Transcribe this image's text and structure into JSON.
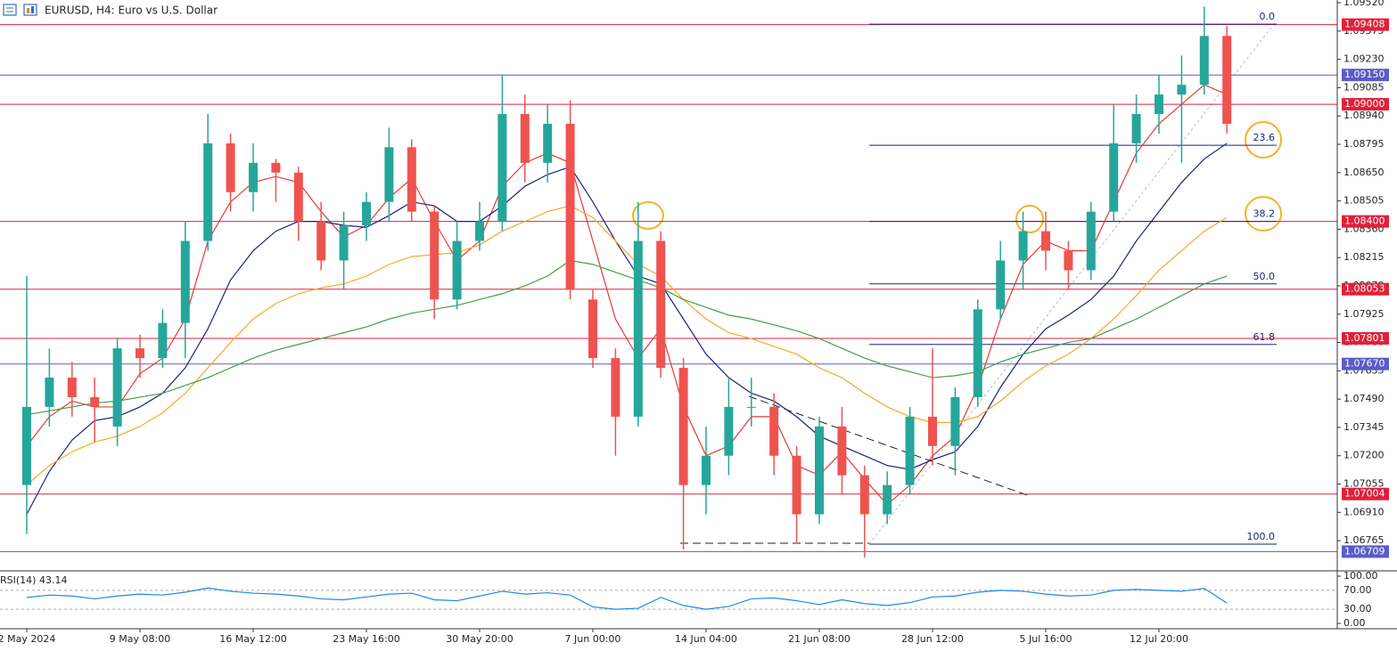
{
  "chart_data": [
    {
      "type": "candlestick",
      "title": "EURUSD, H4:  Euro vs U.S. Dollar",
      "categories": [
        "2 May 2024",
        null,
        null,
        null,
        null,
        "9 May 08:00",
        null,
        null,
        null,
        null,
        "16 May 12:00",
        null,
        null,
        null,
        null,
        "23 May 16:00",
        null,
        null,
        null,
        null,
        "30 May 20:00",
        null,
        null,
        null,
        null,
        "7 Jun 00:00",
        null,
        null,
        null,
        null,
        "14 Jun 04:00",
        null,
        null,
        null,
        null,
        "21 Jun 08:00",
        null,
        null,
        null,
        null,
        "28 Jun 12:00",
        null,
        null,
        null,
        null,
        "5 Jul 16:00",
        null,
        null,
        null,
        null,
        "12 Jul 20:00",
        null,
        null,
        null
      ],
      "open": [
        1.0705,
        1.0745,
        1.076,
        1.075,
        1.0735,
        1.0775,
        1.077,
        1.0788,
        1.083,
        1.088,
        1.0855,
        1.087,
        1.0865,
        1.084,
        1.082,
        1.0838,
        1.085,
        1.0878,
        1.0845,
        1.08,
        1.083,
        1.084,
        1.0895,
        1.087,
        1.089,
        1.08,
        1.077,
        1.074,
        1.083,
        1.0765,
        1.0705,
        1.072,
        1.0745,
        1.0745,
        1.072,
        1.069,
        1.0735,
        1.071,
        1.069,
        1.0705,
        1.074,
        1.0725,
        1.075,
        1.0795,
        1.082,
        1.0835,
        1.0825,
        1.0815,
        1.0845,
        1.088,
        1.0895,
        1.0905,
        1.091,
        1.0935
      ],
      "high": [
        1.0812,
        1.0775,
        1.0768,
        1.076,
        1.078,
        1.0782,
        1.0795,
        1.084,
        1.0895,
        1.0885,
        1.088,
        1.0872,
        1.0868,
        1.085,
        1.0845,
        1.0855,
        1.0888,
        1.0882,
        1.0848,
        1.084,
        1.085,
        1.0915,
        1.0905,
        1.09,
        1.0902,
        1.0805,
        1.0775,
        1.085,
        1.0835,
        1.077,
        1.0735,
        1.076,
        1.076,
        1.0752,
        1.0725,
        1.074,
        1.0745,
        1.0715,
        1.0712,
        1.0745,
        1.0775,
        1.0755,
        1.08,
        1.083,
        1.0845,
        1.0845,
        1.083,
        1.085,
        1.09,
        1.0905,
        1.0915,
        1.0925,
        1.095,
        1.094
      ],
      "low": [
        1.068,
        1.0735,
        1.074,
        1.0727,
        1.0725,
        1.076,
        1.0765,
        1.077,
        1.0825,
        1.0845,
        1.0845,
        1.085,
        1.083,
        1.0815,
        1.0805,
        1.083,
        1.084,
        1.084,
        1.079,
        1.0795,
        1.0825,
        1.0835,
        1.086,
        1.086,
        1.08,
        1.0765,
        1.072,
        1.0735,
        1.076,
        1.0672,
        1.069,
        1.071,
        1.0735,
        1.071,
        1.0675,
        1.0685,
        1.07,
        1.0668,
        1.0685,
        1.07,
        1.0715,
        1.071,
        1.0745,
        1.079,
        1.0805,
        1.0815,
        1.0805,
        1.081,
        1.084,
        1.087,
        1.0885,
        1.087,
        1.0905,
        1.0885
      ],
      "close": [
        1.0745,
        1.076,
        1.075,
        1.0745,
        1.0775,
        1.077,
        1.0788,
        1.083,
        1.088,
        1.0855,
        1.087,
        1.0865,
        1.084,
        1.082,
        1.0838,
        1.085,
        1.0878,
        1.0845,
        1.08,
        1.083,
        1.084,
        1.0895,
        1.087,
        1.089,
        1.0805,
        1.077,
        1.074,
        1.083,
        1.0765,
        1.0705,
        1.072,
        1.0745,
        1.0745,
        1.072,
        1.069,
        1.0735,
        1.071,
        1.069,
        1.0705,
        1.074,
        1.0725,
        1.075,
        1.0795,
        1.082,
        1.0835,
        1.0825,
        1.0815,
        1.0845,
        1.088,
        1.0895,
        1.0905,
        1.091,
        1.0935,
        1.089
      ],
      "up_color": "#26a69a",
      "down_color": "#ef5350",
      "series": [
        {
          "color": "#e53935",
          "values": [
            1.0725,
            1.074,
            1.0748,
            1.0745,
            1.0745,
            1.0762,
            1.077,
            1.079,
            1.083,
            1.085,
            1.086,
            1.0863,
            1.086,
            1.0845,
            1.0832,
            1.0838,
            1.0852,
            1.0862,
            1.084,
            1.082,
            1.083,
            1.0858,
            1.087,
            1.0875,
            1.087,
            1.083,
            1.079,
            1.077,
            1.0785,
            1.0745,
            1.072,
            1.0725,
            1.074,
            1.074,
            1.0715,
            1.071,
            1.0722,
            1.0708,
            1.0695,
            1.0705,
            1.072,
            1.073,
            1.0755,
            1.079,
            1.0818,
            1.083,
            1.0825,
            1.0825,
            1.085,
            1.0875,
            1.089,
            1.09,
            1.091,
            1.0905
          ]
        },
        {
          "color": "#1a237e",
          "values": [
            1.069,
            1.0712,
            1.0728,
            1.0738,
            1.074,
            1.0745,
            1.0752,
            1.0765,
            1.0785,
            1.081,
            1.0825,
            1.0835,
            1.084,
            1.084,
            1.0838,
            1.0837,
            1.0843,
            1.085,
            1.0848,
            1.084,
            1.084,
            1.0848,
            1.0858,
            1.0864,
            1.0868,
            1.085,
            1.083,
            1.0812,
            1.0808,
            1.079,
            1.0772,
            1.076,
            1.0752,
            1.0748,
            1.074,
            1.073,
            1.0725,
            1.072,
            1.0715,
            1.0713,
            1.0718,
            1.0722,
            1.0735,
            1.0755,
            1.0772,
            1.0785,
            1.0792,
            1.08,
            1.0812,
            1.083,
            1.0845,
            1.086,
            1.0872,
            1.088
          ]
        },
        {
          "color": "#f9a825",
          "values": [
            1.0705,
            1.0715,
            1.0722,
            1.0727,
            1.073,
            1.0735,
            1.0742,
            1.0752,
            1.0765,
            1.0778,
            1.079,
            1.0798,
            1.0803,
            1.0806,
            1.0808,
            1.0812,
            1.0818,
            1.0822,
            1.0823,
            1.0824,
            1.0828,
            1.0835,
            1.084,
            1.0845,
            1.0848,
            1.0842,
            1.083,
            1.0818,
            1.0812,
            1.08,
            1.079,
            1.0783,
            1.078,
            1.0776,
            1.0772,
            1.0765,
            1.076,
            1.0752,
            1.0745,
            1.074,
            1.0737,
            1.0737,
            1.074,
            1.0748,
            1.0758,
            1.0766,
            1.0772,
            1.078,
            1.079,
            1.0802,
            1.0815,
            1.0825,
            1.0835,
            1.0842
          ]
        },
        {
          "color": "#43a047",
          "values": [
            1.0741,
            1.0743,
            1.0745,
            1.0747,
            1.0748,
            1.075,
            1.0752,
            1.0756,
            1.076,
            1.0765,
            1.077,
            1.0774,
            1.0777,
            1.078,
            1.0783,
            1.0786,
            1.079,
            1.0793,
            1.0795,
            1.0797,
            1.08,
            1.0803,
            1.0807,
            1.0812,
            1.082,
            1.0818,
            1.0814,
            1.081,
            1.0806,
            1.08,
            1.0796,
            1.0792,
            1.079,
            1.0787,
            1.0784,
            1.078,
            1.0775,
            1.077,
            1.0766,
            1.0763,
            1.076,
            1.0761,
            1.0763,
            1.0768,
            1.0772,
            1.0775,
            1.0778,
            1.078,
            1.0785,
            1.079,
            1.0796,
            1.0802,
            1.0808,
            1.0812
          ]
        }
      ],
      "ylim": [
        1.06615,
        1.09534
      ],
      "yticks": [
        {
          "value": 1.0952,
          "label": "1.09520"
        },
        {
          "value": 1.09375,
          "label": "1.09375"
        },
        {
          "value": 1.0923,
          "label": "1.09230"
        },
        {
          "value": 1.09085,
          "label": "1.09085"
        },
        {
          "value": 1.0894,
          "label": "1.08940"
        },
        {
          "value": 1.08795,
          "label": "1.08795"
        },
        {
          "value": 1.0865,
          "label": "1.08650"
        },
        {
          "value": 1.08505,
          "label": "1.08505"
        },
        {
          "value": 1.0836,
          "label": "1.08360"
        },
        {
          "value": 1.08215,
          "label": "1.08215"
        },
        {
          "value": 1.0807,
          "label": "1.08070"
        },
        {
          "value": 1.07925,
          "label": "1.07925"
        },
        {
          "value": 1.0778,
          "label": "1.07780"
        },
        {
          "value": 1.07635,
          "label": "1.07635"
        },
        {
          "value": 1.0749,
          "label": "1.07490"
        },
        {
          "value": 1.07345,
          "label": "1.07345"
        },
        {
          "value": 1.072,
          "label": "1.07200"
        },
        {
          "value": 1.07055,
          "label": "1.07055"
        },
        {
          "value": 1.0691,
          "label": "1.06910"
        },
        {
          "value": 1.06765,
          "label": "1.06765"
        }
      ],
      "levels": [
        {
          "value": 1.09408,
          "label": "1.09408",
          "color": "#e0203a"
        },
        {
          "value": 1.0915,
          "label": "1.09150",
          "color": "#5b5bc8"
        },
        {
          "value": 1.09,
          "label": "1.09000",
          "color": "#e0203a"
        },
        {
          "value": 1.084,
          "label": "1.08400",
          "color": "#e0203a"
        },
        {
          "value": 1.08053,
          "label": "1.08053",
          "color": "#e0203a"
        },
        {
          "value": 1.07801,
          "label": "1.07801",
          "color": "#e0203a"
        },
        {
          "value": 1.0767,
          "label": "1.07670",
          "color": "#5b5bc8"
        },
        {
          "value": 1.07004,
          "label": "1.07004",
          "color": "#e0203a"
        },
        {
          "value": 1.06709,
          "label": "1.06709",
          "color": "#5b5bc8"
        }
      ],
      "fib": [
        {
          "label": "0.0",
          "price": 1.0941
        },
        {
          "label": "23.6",
          "price": 1.0879
        },
        {
          "label": "38.2",
          "price": 1.084
        },
        {
          "label": "50.0",
          "price": 1.0808
        },
        {
          "label": "61.8",
          "price": 1.0777
        },
        {
          "label": "100.0",
          "price": 1.06747
        }
      ]
    },
    {
      "type": "line",
      "title": "RSI(14) 43.14",
      "color": "#1e88e5",
      "values": [
        55,
        60,
        58,
        52,
        58,
        62,
        60,
        66,
        75,
        68,
        64,
        62,
        58,
        52,
        50,
        56,
        62,
        64,
        50,
        48,
        58,
        68,
        62,
        65,
        60,
        35,
        30,
        32,
        55,
        38,
        30,
        36,
        52,
        54,
        48,
        40,
        50,
        42,
        38,
        44,
        56,
        58,
        66,
        70,
        68,
        62,
        58,
        60,
        70,
        72,
        70,
        68,
        74,
        43.14
      ],
      "ylim": [
        0,
        100
      ],
      "yticks": [
        {
          "value": 100,
          "label": "100.00"
        },
        {
          "value": 70,
          "label": "70.00"
        },
        {
          "value": 30,
          "label": "30.00"
        },
        {
          "value": 0,
          "label": "0.00"
        }
      ]
    }
  ]
}
